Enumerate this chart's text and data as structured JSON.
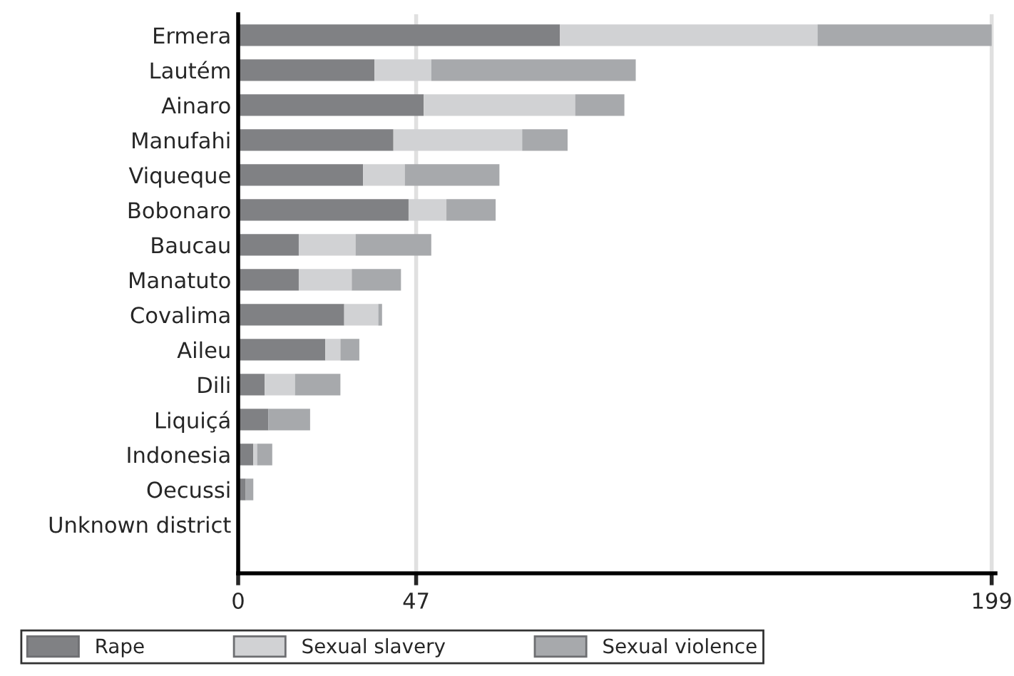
{
  "chart_data": {
    "type": "bar",
    "orientation": "horizontal",
    "stacked": true,
    "categories": [
      "Ermera",
      "Lautém",
      "Ainaro",
      "Manufahi",
      "Viqueque",
      "Bobonaro",
      "Baucau",
      "Manatuto",
      "Covalima",
      "Aileu",
      "Dili",
      "Liquiçá",
      "Indonesia",
      "Oecussi",
      "Unknown district"
    ],
    "series": [
      {
        "name": "Rape",
        "color": "#808184",
        "values": [
          85,
          36,
          49,
          41,
          33,
          45,
          16,
          16,
          28,
          23,
          7,
          8,
          4,
          2,
          0
        ]
      },
      {
        "name": "Sexual slavery",
        "color": "#d1d2d4",
        "values": [
          68,
          15,
          40,
          34,
          11,
          10,
          15,
          14,
          9,
          4,
          8,
          0,
          1,
          0,
          0
        ]
      },
      {
        "name": "Sexual violence",
        "color": "#a7a9ac",
        "values": [
          46,
          54,
          13,
          12,
          25,
          13,
          20,
          13,
          1,
          5,
          12,
          11,
          4,
          2,
          0
        ]
      }
    ],
    "xlim": [
      0,
      200
    ],
    "xticks": [
      0,
      47,
      199
    ],
    "grid": "x",
    "legend": "bottom"
  }
}
